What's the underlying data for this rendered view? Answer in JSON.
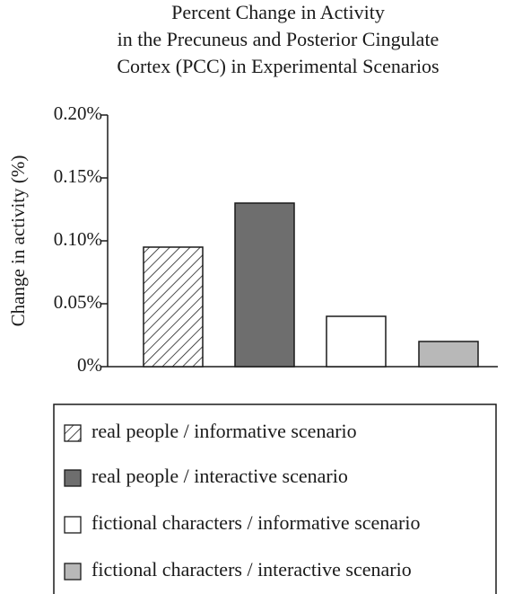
{
  "chart_data": {
    "type": "bar",
    "title": [
      "Percent Change in Activity",
      "in the Precuneus and Posterior Cingulate",
      "Cortex (PCC) in Experimental Scenarios"
    ],
    "y_label": "Change in activity (%)",
    "categories": [
      "real people / informative scenario",
      "real people / interactive scenario",
      "fictional characters / informative scenario",
      "fictional characters / interactive scenario"
    ],
    "values": [
      0.095,
      0.13,
      0.04,
      0.02
    ],
    "colors": [
      "#ffffff",
      "#6e6e6e",
      "#ffffff",
      "#b8b8b8"
    ],
    "hatch": [
      true,
      false,
      false,
      false
    ],
    "ylim": [
      0,
      0.2
    ],
    "yticks": [
      {
        "value": 0,
        "label": "0%"
      },
      {
        "value": 0.05,
        "label": "0.05%"
      },
      {
        "value": 0.1,
        "label": "0.10%"
      },
      {
        "value": 0.15,
        "label": "0.15%"
      },
      {
        "value": 0.2,
        "label": "0.20%"
      }
    ],
    "grid": false
  }
}
